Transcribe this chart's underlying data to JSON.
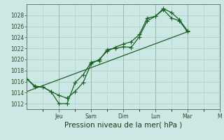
{
  "background_color": "#cce8e4",
  "grid_color": "#aaccc8",
  "line_color": "#1a6020",
  "xlabel": "Pression niveau de la mer( hPa )",
  "xlabel_fontsize": 7.5,
  "ylim": [
    1011,
    1030
  ],
  "yticks": [
    1012,
    1014,
    1016,
    1018,
    1020,
    1022,
    1024,
    1026,
    1028
  ],
  "xlim": [
    0,
    12
  ],
  "day_positions": [
    2,
    4,
    6,
    8,
    10,
    12
  ],
  "day_labels": [
    "Jeu",
    "Sam",
    "Dim",
    "Lun",
    "Mar",
    "M"
  ],
  "line1_x": [
    0.0,
    0.5,
    1.0,
    1.5,
    2.0,
    2.5,
    3.0,
    3.5,
    4.0,
    4.5,
    5.0,
    5.5,
    6.0,
    6.5,
    7.0,
    7.5,
    8.0,
    8.5,
    9.0,
    9.5,
    10.0
  ],
  "line1_y": [
    1016.5,
    1015.2,
    1015.0,
    1014.2,
    1012.0,
    1012.0,
    1015.8,
    1017.2,
    1019.5,
    1019.8,
    1021.8,
    1022.0,
    1022.3,
    1022.2,
    1024.1,
    1027.0,
    1027.8,
    1029.0,
    1027.5,
    1027.0,
    1025.0
  ],
  "line2_x": [
    0.0,
    0.5,
    1.0,
    1.5,
    2.0,
    2.5,
    3.0,
    3.5,
    4.0,
    4.5,
    5.0,
    5.5,
    6.0,
    6.5,
    7.0,
    7.5,
    8.0,
    8.5,
    9.0,
    9.5,
    10.0
  ],
  "line2_y": [
    1016.5,
    1015.0,
    1015.0,
    1014.2,
    1013.5,
    1013.0,
    1014.2,
    1015.8,
    1019.2,
    1020.0,
    1021.5,
    1022.2,
    1022.8,
    1023.2,
    1024.5,
    1027.5,
    1027.8,
    1029.2,
    1028.5,
    1027.2,
    1025.2
  ],
  "line3_x": [
    0.0,
    10.0
  ],
  "line3_y": [
    1014.2,
    1025.0
  ],
  "marker_size": 2.5,
  "linewidth": 0.9
}
